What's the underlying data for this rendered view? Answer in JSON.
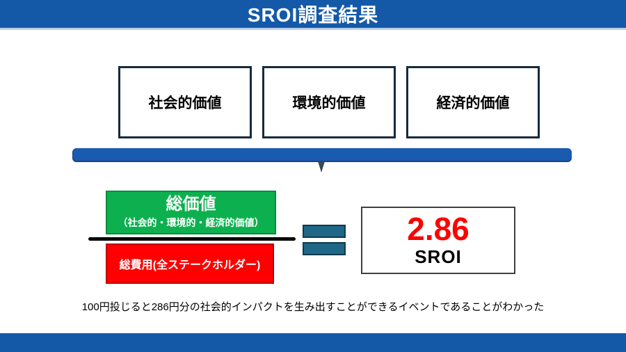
{
  "slide": {
    "title": "SROI調査結果",
    "value_boxes": [
      {
        "label": "社会的価値"
      },
      {
        "label": "環境的価値"
      },
      {
        "label": "経済的価値"
      }
    ],
    "numerator": {
      "title": "総価値",
      "subtitle": "（社会的・環境的・経済的価値）"
    },
    "denominator": {
      "label": "総費用(全ステークホルダー)"
    },
    "equals_symbol": "=",
    "result": {
      "value": "2.86",
      "label": "SROI"
    },
    "caption": "100円投じると286円分の社会的インパクトを生み出すことができるイベントであることがわかった",
    "colors": {
      "banner_blue": "#1459A8",
      "brace_blue": "#1A5BB0",
      "green_fill": "#0CB04E",
      "green_border": "#088B3A",
      "red_fill": "#FE0000",
      "red_border": "#C00000",
      "equals_fill": "#1E6787",
      "equals_border": "#12384C",
      "result_value_red": "#FF0000",
      "value_box_border": "#17293E"
    }
  }
}
